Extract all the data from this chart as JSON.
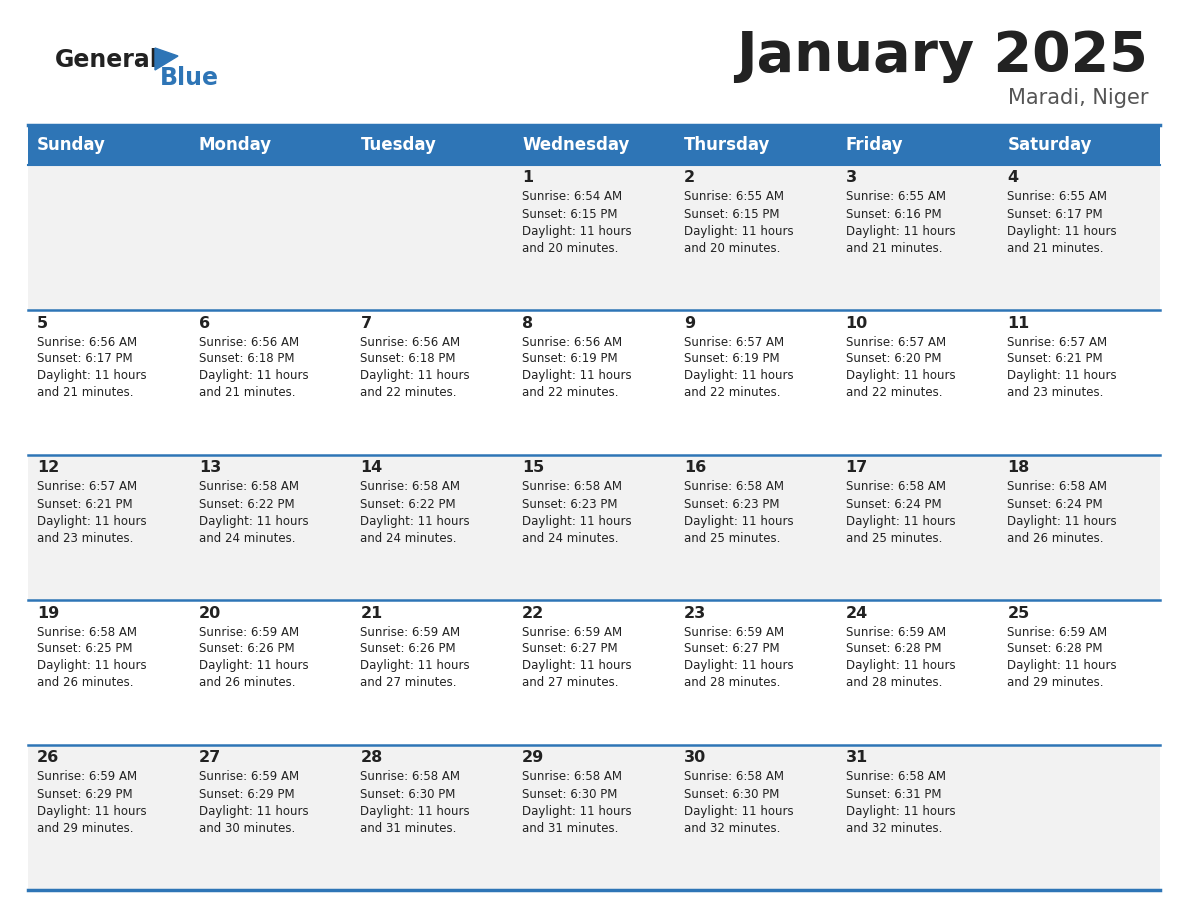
{
  "title": "January 2025",
  "subtitle": "Maradi, Niger",
  "days_of_week": [
    "Sunday",
    "Monday",
    "Tuesday",
    "Wednesday",
    "Thursday",
    "Friday",
    "Saturday"
  ],
  "header_bg": "#2E75B6",
  "header_text_color": "#FFFFFF",
  "cell_bg_odd": "#F2F2F2",
  "cell_bg_even": "#FFFFFF",
  "border_color": "#2E75B6",
  "title_color": "#222222",
  "subtitle_color": "#555555",
  "text_color": "#222222",
  "logo_general_color": "#222222",
  "logo_blue_color": "#2E75B6",
  "logo_triangle_color": "#2E75B6",
  "calendar": [
    [
      null,
      null,
      null,
      {
        "day": 1,
        "sunrise": "6:54 AM",
        "sunset": "6:15 PM",
        "daylight": "11 hours and 20 minutes."
      },
      {
        "day": 2,
        "sunrise": "6:55 AM",
        "sunset": "6:15 PM",
        "daylight": "11 hours and 20 minutes."
      },
      {
        "day": 3,
        "sunrise": "6:55 AM",
        "sunset": "6:16 PM",
        "daylight": "11 hours and 21 minutes."
      },
      {
        "day": 4,
        "sunrise": "6:55 AM",
        "sunset": "6:17 PM",
        "daylight": "11 hours and 21 minutes."
      }
    ],
    [
      {
        "day": 5,
        "sunrise": "6:56 AM",
        "sunset": "6:17 PM",
        "daylight": "11 hours and 21 minutes."
      },
      {
        "day": 6,
        "sunrise": "6:56 AM",
        "sunset": "6:18 PM",
        "daylight": "11 hours and 21 minutes."
      },
      {
        "day": 7,
        "sunrise": "6:56 AM",
        "sunset": "6:18 PM",
        "daylight": "11 hours and 22 minutes."
      },
      {
        "day": 8,
        "sunrise": "6:56 AM",
        "sunset": "6:19 PM",
        "daylight": "11 hours and 22 minutes."
      },
      {
        "day": 9,
        "sunrise": "6:57 AM",
        "sunset": "6:19 PM",
        "daylight": "11 hours and 22 minutes."
      },
      {
        "day": 10,
        "sunrise": "6:57 AM",
        "sunset": "6:20 PM",
        "daylight": "11 hours and 22 minutes."
      },
      {
        "day": 11,
        "sunrise": "6:57 AM",
        "sunset": "6:21 PM",
        "daylight": "11 hours and 23 minutes."
      }
    ],
    [
      {
        "day": 12,
        "sunrise": "6:57 AM",
        "sunset": "6:21 PM",
        "daylight": "11 hours and 23 minutes."
      },
      {
        "day": 13,
        "sunrise": "6:58 AM",
        "sunset": "6:22 PM",
        "daylight": "11 hours and 24 minutes."
      },
      {
        "day": 14,
        "sunrise": "6:58 AM",
        "sunset": "6:22 PM",
        "daylight": "11 hours and 24 minutes."
      },
      {
        "day": 15,
        "sunrise": "6:58 AM",
        "sunset": "6:23 PM",
        "daylight": "11 hours and 24 minutes."
      },
      {
        "day": 16,
        "sunrise": "6:58 AM",
        "sunset": "6:23 PM",
        "daylight": "11 hours and 25 minutes."
      },
      {
        "day": 17,
        "sunrise": "6:58 AM",
        "sunset": "6:24 PM",
        "daylight": "11 hours and 25 minutes."
      },
      {
        "day": 18,
        "sunrise": "6:58 AM",
        "sunset": "6:24 PM",
        "daylight": "11 hours and 26 minutes."
      }
    ],
    [
      {
        "day": 19,
        "sunrise": "6:58 AM",
        "sunset": "6:25 PM",
        "daylight": "11 hours and 26 minutes."
      },
      {
        "day": 20,
        "sunrise": "6:59 AM",
        "sunset": "6:26 PM",
        "daylight": "11 hours and 26 minutes."
      },
      {
        "day": 21,
        "sunrise": "6:59 AM",
        "sunset": "6:26 PM",
        "daylight": "11 hours and 27 minutes."
      },
      {
        "day": 22,
        "sunrise": "6:59 AM",
        "sunset": "6:27 PM",
        "daylight": "11 hours and 27 minutes."
      },
      {
        "day": 23,
        "sunrise": "6:59 AM",
        "sunset": "6:27 PM",
        "daylight": "11 hours and 28 minutes."
      },
      {
        "day": 24,
        "sunrise": "6:59 AM",
        "sunset": "6:28 PM",
        "daylight": "11 hours and 28 minutes."
      },
      {
        "day": 25,
        "sunrise": "6:59 AM",
        "sunset": "6:28 PM",
        "daylight": "11 hours and 29 minutes."
      }
    ],
    [
      {
        "day": 26,
        "sunrise": "6:59 AM",
        "sunset": "6:29 PM",
        "daylight": "11 hours and 29 minutes."
      },
      {
        "day": 27,
        "sunrise": "6:59 AM",
        "sunset": "6:29 PM",
        "daylight": "11 hours and 30 minutes."
      },
      {
        "day": 28,
        "sunrise": "6:58 AM",
        "sunset": "6:30 PM",
        "daylight": "11 hours and 31 minutes."
      },
      {
        "day": 29,
        "sunrise": "6:58 AM",
        "sunset": "6:30 PM",
        "daylight": "11 hours and 31 minutes."
      },
      {
        "day": 30,
        "sunrise": "6:58 AM",
        "sunset": "6:30 PM",
        "daylight": "11 hours and 32 minutes."
      },
      {
        "day": 31,
        "sunrise": "6:58 AM",
        "sunset": "6:31 PM",
        "daylight": "11 hours and 32 minutes."
      },
      null
    ]
  ]
}
